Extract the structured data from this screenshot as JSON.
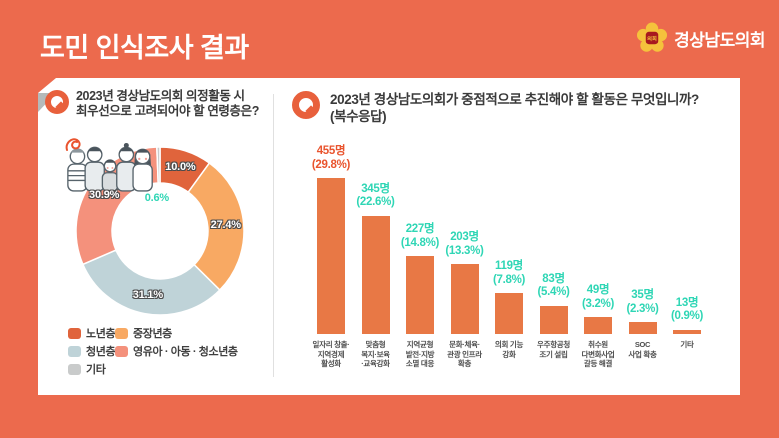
{
  "header": {
    "title": "도민 인식조사 결과",
    "logo": {
      "text": "경상남도의회",
      "emblem_text": "의회"
    }
  },
  "left_panel": {
    "q_mark": "Q",
    "question_line1": "2023년 경상남도의회 의정활동 시",
    "question_line2": "최우선으로 고려되어야 할 연령층은?"
  },
  "right_panel": {
    "q_mark": "Q",
    "question_line1": "2023년 경상남도의회가 중점적으로 추진해야 할 활동은 무엇입니까?",
    "question_line2": "(복수응답)"
  },
  "colors": {
    "background": "#EC6A4D",
    "q_icon": "#E8603C",
    "bar": "#E87845",
    "accent_red": "#E9542E",
    "teal": "#2FD6B5",
    "fold": "#B5BABA"
  },
  "chart_data": [
    {
      "type": "pie",
      "donut": true,
      "title": "2023년 경상남도의회 의정활동 시 최우선으로 고려되어야 할 연령층은?",
      "unit": "%",
      "start_angle": "top, clockwise",
      "slices": [
        {
          "label": "노년층",
          "value": 10.0,
          "display": "10.0%",
          "color": "#E0643C"
        },
        {
          "label": "중장년층",
          "value": 27.4,
          "display": "27.4%",
          "color": "#F8A963"
        },
        {
          "label": "청년층",
          "value": 31.1,
          "display": "31.1%",
          "color": "#BFD3D8"
        },
        {
          "label": "영유아 · 아동 · 청소년층",
          "value": 30.9,
          "display": "30.9%",
          "color": "#F4917C"
        },
        {
          "label": "기타",
          "value": 0.6,
          "display": "0.6%",
          "color": "#C9CBCB",
          "callout": true
        }
      ],
      "legend_rows": [
        [
          0,
          1
        ],
        [
          2,
          3
        ],
        [
          4
        ]
      ]
    },
    {
      "type": "bar",
      "title": "2023년 경상남도의회가 중점적으로 추진해야 할 활동은 무엇입니까? (복수응답)",
      "unit": "명",
      "ylim": [
        0,
        455
      ],
      "categories": [
        [
          "일자리 창출·",
          "지역경제",
          "활성화"
        ],
        [
          "맞춤형",
          "복지·보육",
          "·교육강화"
        ],
        [
          "지역균형",
          "발전·지방",
          "소멸 대응"
        ],
        [
          "문화·체육·",
          "관광 인프라",
          "확충"
        ],
        [
          "의회 기능",
          "강화"
        ],
        [
          "우주항공청",
          "조기 설립"
        ],
        [
          "취수원",
          "다변화사업",
          "갈등 해결"
        ],
        [
          "SOC",
          "사업 확충"
        ],
        [
          "기타"
        ]
      ],
      "values": [
        455,
        345,
        227,
        203,
        119,
        83,
        49,
        35,
        13
      ],
      "value_labels": [
        [
          "455명",
          "(29.8%)"
        ],
        [
          "345명",
          "(22.6%)"
        ],
        [
          "227명",
          "(14.8%)"
        ],
        [
          "203명",
          "(13.3%)"
        ],
        [
          "119명",
          "(7.8%)"
        ],
        [
          "83명",
          "(5.4%)"
        ],
        [
          "49명",
          "(3.2%)"
        ],
        [
          "35명",
          "(2.3%)"
        ],
        [
          "13명",
          "(0.9%)"
        ]
      ],
      "highlight_index": 0
    }
  ]
}
